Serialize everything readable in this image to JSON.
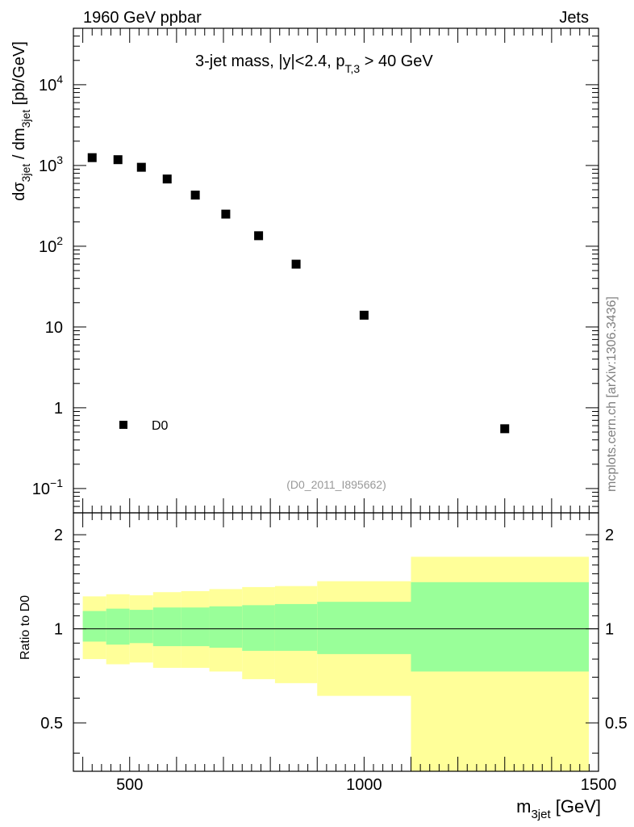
{
  "header": {
    "left": "1960 GeV ppbar",
    "right": "Jets"
  },
  "watermark": "mcplots.cern.ch [arXiv:1306.3436]",
  "analysis_id": "(D0_2011_I895662)",
  "colors": {
    "band_total": "#ffff99",
    "band_stat": "#99ff99",
    "marker": "#000000"
  },
  "chart_data": [
    {
      "type": "scatter",
      "title": "3-jet mass, |y|<2.4, p",
      "title_sub": "T,3",
      "title_suffix": " > 40 GeV",
      "ylabel": "dσ3jet / dm3jet [pb/GeV]",
      "ylabel_parts": [
        "dσ",
        "3jet",
        " / dm",
        "3jet",
        " [pb/GeV]"
      ],
      "yscale": "log",
      "xlim": [
        380,
        1500
      ],
      "ylim": [
        0.05,
        50000
      ],
      "yticks": [
        {
          "value": 0.1,
          "label": "10",
          "sup": "−1"
        },
        {
          "value": 1,
          "label": "1",
          "sup": ""
        },
        {
          "value": 10,
          "label": "10",
          "sup": ""
        },
        {
          "value": 100,
          "label": "10",
          "sup": "2"
        },
        {
          "value": 1000,
          "label": "10",
          "sup": "3"
        },
        {
          "value": 10000,
          "label": "10",
          "sup": "4"
        }
      ],
      "legend": {
        "label": "D0",
        "placement": "bottom-left"
      },
      "series": [
        {
          "name": "D0",
          "x": [
            420,
            475,
            525,
            580,
            640,
            705,
            775,
            855,
            1000,
            1300
          ],
          "y": [
            1250,
            1180,
            950,
            680,
            430,
            250,
            135,
            60,
            14,
            0.55
          ]
        }
      ]
    },
    {
      "type": "area",
      "ylabel": "Ratio to D0",
      "xlabel": "m3jet [GeV]",
      "xlabel_parts": [
        "m",
        "3jet",
        " [GeV]"
      ],
      "xlim": [
        380,
        1500
      ],
      "ylim": [
        0.35,
        2.35
      ],
      "yscale": "log",
      "yticks": [
        {
          "value": 0.5,
          "label": "0.5"
        },
        {
          "value": 1,
          "label": "1"
        },
        {
          "value": 2,
          "label": "2"
        }
      ],
      "xticks": [
        {
          "value": 500,
          "label": "500"
        },
        {
          "value": 1000,
          "label": "1000"
        },
        {
          "value": 1500,
          "label": "1500"
        }
      ],
      "reference_line": 1.0,
      "bins": [
        {
          "lo": 400,
          "hi": 450,
          "total_lo": 0.8,
          "total_hi": 1.27,
          "stat_lo": 0.91,
          "stat_hi": 1.14
        },
        {
          "lo": 450,
          "hi": 500,
          "total_lo": 0.77,
          "total_hi": 1.29,
          "stat_lo": 0.89,
          "stat_hi": 1.16
        },
        {
          "lo": 500,
          "hi": 550,
          "total_lo": 0.78,
          "total_hi": 1.28,
          "stat_lo": 0.9,
          "stat_hi": 1.15
        },
        {
          "lo": 550,
          "hi": 610,
          "total_lo": 0.75,
          "total_hi": 1.31,
          "stat_lo": 0.88,
          "stat_hi": 1.17
        },
        {
          "lo": 610,
          "hi": 670,
          "total_lo": 0.75,
          "total_hi": 1.32,
          "stat_lo": 0.88,
          "stat_hi": 1.17
        },
        {
          "lo": 670,
          "hi": 740,
          "total_lo": 0.73,
          "total_hi": 1.34,
          "stat_lo": 0.87,
          "stat_hi": 1.18
        },
        {
          "lo": 740,
          "hi": 810,
          "total_lo": 0.69,
          "total_hi": 1.36,
          "stat_lo": 0.85,
          "stat_hi": 1.19
        },
        {
          "lo": 810,
          "hi": 900,
          "total_lo": 0.67,
          "total_hi": 1.37,
          "stat_lo": 0.85,
          "stat_hi": 1.2
        },
        {
          "lo": 900,
          "hi": 1100,
          "total_lo": 0.61,
          "total_hi": 1.42,
          "stat_lo": 0.83,
          "stat_hi": 1.22
        },
        {
          "lo": 1100,
          "hi": 1500,
          "total_lo": 0.35,
          "total_hi": 1.7,
          "stat_lo": 0.73,
          "stat_hi": 1.41
        }
      ]
    }
  ]
}
